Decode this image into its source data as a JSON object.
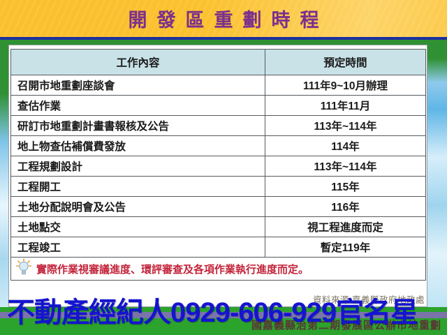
{
  "banner": {
    "title": "開發區重劃時程"
  },
  "table": {
    "headers": {
      "task": "工作內容",
      "time": "預定時間"
    },
    "rows": [
      {
        "task": "召開市地重劃座談會",
        "time": "111年9~10月辦理"
      },
      {
        "task": "查估作業",
        "time": "111年11月"
      },
      {
        "task": "研訂市地重劃計畫書報核及公告",
        "time": "113年~114年"
      },
      {
        "task": "地上物查估補償費發放",
        "time": "114年"
      },
      {
        "task": "工程規劃設計",
        "time": "113年~114年"
      },
      {
        "task": "工程開工",
        "time": "115年"
      },
      {
        "task": "土地分配說明會及公告",
        "time": "116年"
      },
      {
        "task": "土地點交",
        "time": "視工程進度而定"
      },
      {
        "task": "工程竣工",
        "time": "暫定119年"
      }
    ],
    "note": "實際作業視審議進度、環評審查及各項作業執行進度而定。"
  },
  "source_note": "資料來源:嘉義縣政府地政處",
  "footer_caption": "國嘉義縣治第二期發展區公辦市地重劃",
  "watermark": "不動產經紀人0929-606-929官名星",
  "icons": {
    "note_icon": "lightbulb-icon"
  },
  "colors": {
    "banner_yellow": "#fbc02d",
    "title_purple": "#7b2f8e",
    "rule_blue": "#1c2f9f",
    "frame_green": "#2f9133",
    "band_green": "#2ca32c",
    "stripe_purple": "#7b74a9",
    "header_row_blue": "#c9e2e8",
    "note_red": "#c3243a",
    "watermark_blue": "#1414cf",
    "sky_blue": "#9fd4ee"
  }
}
